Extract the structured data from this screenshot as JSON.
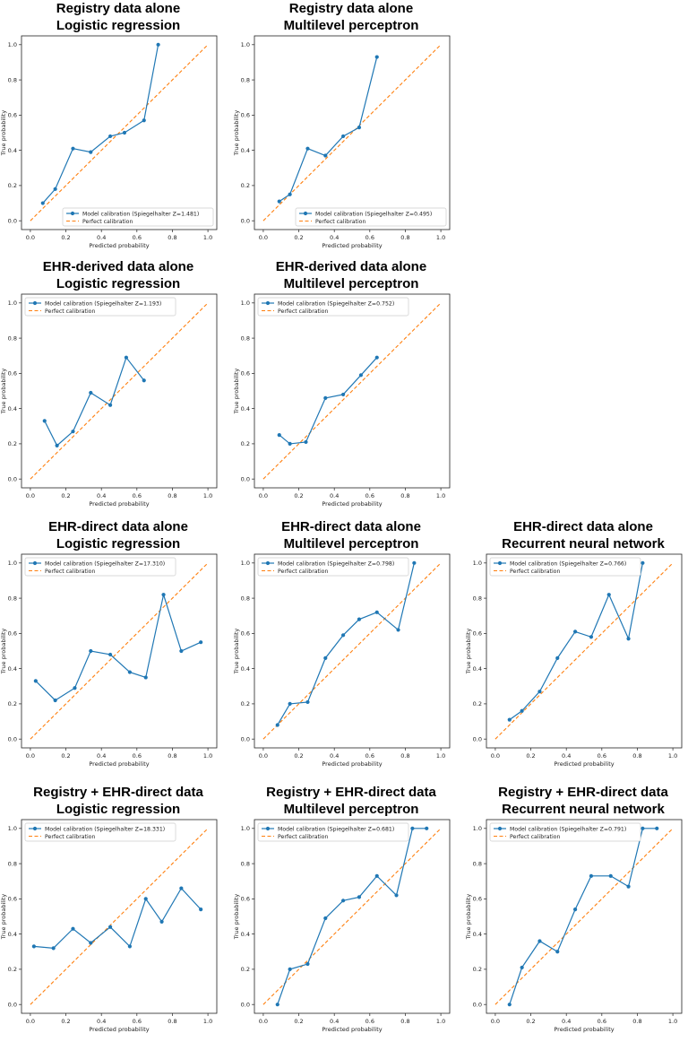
{
  "colors": {
    "model": "#1f77b4",
    "perfect": "#ff7f0e"
  },
  "chart_data": [
    {
      "type": "line",
      "title": [
        "Registry data alone",
        "Logistic regression"
      ],
      "xlabel": "Predicted probability",
      "ylabel": "True probability",
      "xlim": [
        0,
        1
      ],
      "ylim": [
        0,
        1
      ],
      "x_ticks": [
        "0.0",
        "0.2",
        "0.4",
        "0.6",
        "0.8",
        "1.0"
      ],
      "y_ticks": [
        "0.0",
        "0.2",
        "0.4",
        "0.6",
        "0.8",
        "1.0"
      ],
      "legend_loc": "lower-right",
      "series": [
        {
          "name": "Model calibration (Spiegelhalter Z=1.481)",
          "style": "line-marker",
          "x": [
            0.07,
            0.14,
            0.24,
            0.34,
            0.45,
            0.53,
            0.64,
            0.72
          ],
          "y": [
            0.1,
            0.18,
            0.41,
            0.39,
            0.48,
            0.5,
            0.57,
            1.0
          ]
        },
        {
          "name": "Perfect calibration",
          "style": "dashed",
          "x": [
            0,
            1
          ],
          "y": [
            0,
            1
          ]
        }
      ]
    },
    {
      "type": "line",
      "title": [
        "Registry data alone",
        "Multilevel perceptron"
      ],
      "xlabel": "Predicted probability",
      "ylabel": "True probability",
      "xlim": [
        0,
        1
      ],
      "ylim": [
        0,
        1
      ],
      "x_ticks": [
        "0.0",
        "0.2",
        "0.4",
        "0.6",
        "0.8",
        "1.0"
      ],
      "y_ticks": [
        "0.0",
        "0.2",
        "0.4",
        "0.6",
        "0.8",
        "1.0"
      ],
      "legend_loc": "lower-right",
      "series": [
        {
          "name": "Model calibration (Spiegelhalter Z=0.495)",
          "style": "line-marker",
          "x": [
            0.09,
            0.15,
            0.25,
            0.35,
            0.45,
            0.54,
            0.64
          ],
          "y": [
            0.11,
            0.15,
            0.41,
            0.37,
            0.48,
            0.53,
            0.93
          ]
        },
        {
          "name": "Perfect calibration",
          "style": "dashed",
          "x": [
            0,
            1
          ],
          "y": [
            0,
            1
          ]
        }
      ]
    },
    {
      "type": "line",
      "title": [
        "EHR-derived data alone",
        "Logistic regression"
      ],
      "xlabel": "Predicted probability",
      "ylabel": "True probability",
      "xlim": [
        0,
        1
      ],
      "ylim": [
        0,
        1
      ],
      "x_ticks": [
        "0.0",
        "0.2",
        "0.4",
        "0.6",
        "0.8",
        "1.0"
      ],
      "y_ticks": [
        "0.0",
        "0.2",
        "0.4",
        "0.6",
        "0.8",
        "1.0"
      ],
      "legend_loc": "upper-left",
      "series": [
        {
          "name": "Model calibration (Spiegelhalter Z=1.193)",
          "style": "line-marker",
          "x": [
            0.08,
            0.15,
            0.24,
            0.34,
            0.45,
            0.54,
            0.64
          ],
          "y": [
            0.33,
            0.19,
            0.27,
            0.49,
            0.42,
            0.69,
            0.56
          ]
        },
        {
          "name": "Perfect calibration",
          "style": "dashed",
          "x": [
            0,
            1
          ],
          "y": [
            0,
            1
          ]
        }
      ]
    },
    {
      "type": "line",
      "title": [
        "EHR-derived data alone",
        "Multilevel perceptron"
      ],
      "xlabel": "Predicted probability",
      "ylabel": "True probability",
      "xlim": [
        0,
        1
      ],
      "ylim": [
        0,
        1
      ],
      "x_ticks": [
        "0.0",
        "0.2",
        "0.4",
        "0.6",
        "0.8",
        "1.0"
      ],
      "y_ticks": [
        "0.0",
        "0.2",
        "0.4",
        "0.6",
        "0.8",
        "1.0"
      ],
      "legend_loc": "upper-left",
      "series": [
        {
          "name": "Model calibration (Spiegelhalter Z=0.752)",
          "style": "line-marker",
          "x": [
            0.09,
            0.15,
            0.24,
            0.35,
            0.45,
            0.55,
            0.64
          ],
          "y": [
            0.25,
            0.2,
            0.21,
            0.46,
            0.48,
            0.59,
            0.69
          ]
        },
        {
          "name": "Perfect calibration",
          "style": "dashed",
          "x": [
            0,
            1
          ],
          "y": [
            0,
            1
          ]
        }
      ]
    },
    {
      "type": "line",
      "title": [
        "EHR-direct data alone",
        "Logistic regression"
      ],
      "xlabel": "Predicted probability",
      "ylabel": "True probability",
      "xlim": [
        0,
        1
      ],
      "ylim": [
        0,
        1
      ],
      "x_ticks": [
        "0.0",
        "0.2",
        "0.4",
        "0.6",
        "0.8",
        "1.0"
      ],
      "y_ticks": [
        "0.0",
        "0.2",
        "0.4",
        "0.6",
        "0.8",
        "1.0"
      ],
      "legend_loc": "upper-left",
      "series": [
        {
          "name": "Model calibration (Spiegelhalter Z=17.310)",
          "style": "line-marker",
          "x": [
            0.03,
            0.14,
            0.25,
            0.34,
            0.45,
            0.56,
            0.65,
            0.75,
            0.85,
            0.96
          ],
          "y": [
            0.33,
            0.22,
            0.29,
            0.5,
            0.48,
            0.38,
            0.35,
            0.82,
            0.5,
            0.55
          ]
        },
        {
          "name": "Perfect calibration",
          "style": "dashed",
          "x": [
            0,
            1
          ],
          "y": [
            0,
            1
          ]
        }
      ]
    },
    {
      "type": "line",
      "title": [
        "EHR-direct data alone",
        "Multilevel perceptron"
      ],
      "xlabel": "Predicted probability",
      "ylabel": "True probability",
      "xlim": [
        0,
        1
      ],
      "ylim": [
        0,
        1
      ],
      "x_ticks": [
        "0.0",
        "0.2",
        "0.4",
        "0.6",
        "0.8",
        "1.0"
      ],
      "y_ticks": [
        "0.0",
        "0.2",
        "0.4",
        "0.6",
        "0.8",
        "1.0"
      ],
      "legend_loc": "upper-left",
      "series": [
        {
          "name": "Model calibration (Spiegelhalter Z=0.798)",
          "style": "line-marker",
          "x": [
            0.08,
            0.15,
            0.25,
            0.35,
            0.45,
            0.54,
            0.64,
            0.76,
            0.85
          ],
          "y": [
            0.08,
            0.2,
            0.21,
            0.46,
            0.59,
            0.68,
            0.72,
            0.62,
            1.0
          ]
        },
        {
          "name": "Perfect calibration",
          "style": "dashed",
          "x": [
            0,
            1
          ],
          "y": [
            0,
            1
          ]
        }
      ]
    },
    {
      "type": "line",
      "title": [
        "EHR-direct data alone",
        "Recurrent neural network"
      ],
      "xlabel": "Predicted probability",
      "ylabel": "True probability",
      "xlim": [
        0,
        1
      ],
      "ylim": [
        0,
        1
      ],
      "x_ticks": [
        "0.0",
        "0.2",
        "0.4",
        "0.6",
        "0.8",
        "1.0"
      ],
      "y_ticks": [
        "0.0",
        "0.2",
        "0.4",
        "0.6",
        "0.8",
        "1.0"
      ],
      "legend_loc": "upper-left",
      "series": [
        {
          "name": "Model calibration (Spiegelhalter Z=0.766)",
          "style": "line-marker",
          "x": [
            0.08,
            0.15,
            0.25,
            0.35,
            0.45,
            0.54,
            0.64,
            0.75,
            0.83
          ],
          "y": [
            0.11,
            0.16,
            0.27,
            0.46,
            0.61,
            0.58,
            0.82,
            0.57,
            1.0
          ]
        },
        {
          "name": "Perfect calibration",
          "style": "dashed",
          "x": [
            0,
            1
          ],
          "y": [
            0,
            1
          ]
        }
      ]
    },
    {
      "type": "line",
      "title": [
        "Registry + EHR-direct data",
        "Logistic regression"
      ],
      "xlabel": "Predicted probability",
      "ylabel": "True probability",
      "xlim": [
        0,
        1
      ],
      "ylim": [
        0,
        1
      ],
      "x_ticks": [
        "0.0",
        "0.2",
        "0.4",
        "0.6",
        "0.8",
        "1.0"
      ],
      "y_ticks": [
        "0.0",
        "0.2",
        "0.4",
        "0.6",
        "0.8",
        "1.0"
      ],
      "legend_loc": "upper-left",
      "series": [
        {
          "name": "Model calibration (Spiegelhalter Z=18.331)",
          "style": "line-marker",
          "x": [
            0.02,
            0.13,
            0.24,
            0.34,
            0.45,
            0.56,
            0.65,
            0.74,
            0.85,
            0.96
          ],
          "y": [
            0.33,
            0.32,
            0.43,
            0.35,
            0.44,
            0.33,
            0.6,
            0.47,
            0.66,
            0.54
          ]
        },
        {
          "name": "Perfect calibration",
          "style": "dashed",
          "x": [
            0,
            1
          ],
          "y": [
            0,
            1
          ]
        }
      ]
    },
    {
      "type": "line",
      "title": [
        "Registry + EHR-direct data",
        "Multilevel perceptron"
      ],
      "xlabel": "Predicted probability",
      "ylabel": "True probability",
      "xlim": [
        0,
        1
      ],
      "ylim": [
        0,
        1
      ],
      "x_ticks": [
        "0.0",
        "0.2",
        "0.4",
        "0.6",
        "0.8",
        "1.0"
      ],
      "y_ticks": [
        "0.0",
        "0.2",
        "0.4",
        "0.6",
        "0.8",
        "1.0"
      ],
      "legend_loc": "upper-left",
      "series": [
        {
          "name": "Model calibration (Spiegelhalter Z=0.681)",
          "style": "line-marker",
          "x": [
            0.08,
            0.15,
            0.25,
            0.35,
            0.45,
            0.54,
            0.64,
            0.75,
            0.84,
            0.92
          ],
          "y": [
            0.0,
            0.2,
            0.23,
            0.49,
            0.59,
            0.61,
            0.73,
            0.62,
            1.0,
            1.0
          ]
        },
        {
          "name": "Perfect calibration",
          "style": "dashed",
          "x": [
            0,
            1
          ],
          "y": [
            0,
            1
          ]
        }
      ]
    },
    {
      "type": "line",
      "title": [
        "Registry + EHR-direct data",
        "Recurrent neural network"
      ],
      "xlabel": "Predicted probability",
      "ylabel": "True probability",
      "xlim": [
        0,
        1
      ],
      "ylim": [
        0,
        1
      ],
      "x_ticks": [
        "0.0",
        "0.2",
        "0.4",
        "0.6",
        "0.8",
        "1.0"
      ],
      "y_ticks": [
        "0.0",
        "0.2",
        "0.4",
        "0.6",
        "0.8",
        "1.0"
      ],
      "legend_loc": "upper-left",
      "series": [
        {
          "name": "Model calibration (Spiegelhalter Z=0.791)",
          "style": "line-marker",
          "x": [
            0.08,
            0.15,
            0.25,
            0.35,
            0.45,
            0.54,
            0.65,
            0.75,
            0.83,
            0.91
          ],
          "y": [
            0.0,
            0.21,
            0.36,
            0.3,
            0.54,
            0.73,
            0.73,
            0.67,
            1.0,
            1.0
          ]
        },
        {
          "name": "Perfect calibration",
          "style": "dashed",
          "x": [
            0,
            1
          ],
          "y": [
            0,
            1
          ]
        }
      ]
    }
  ]
}
